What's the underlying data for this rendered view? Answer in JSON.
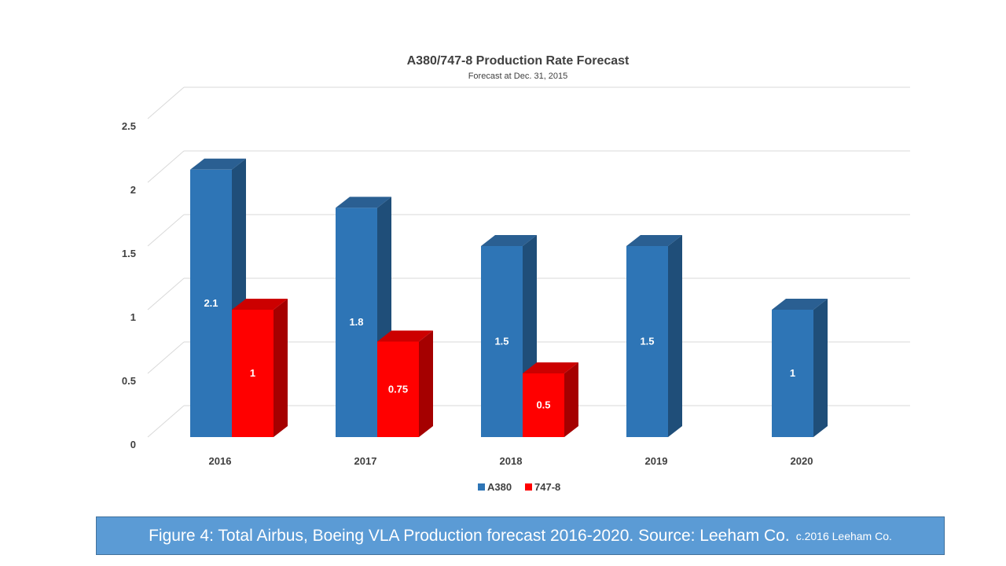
{
  "chart_data": {
    "type": "bar",
    "title": "A380/747-8 Production Rate Forecast",
    "subtitle": "Forecast at Dec. 31, 2015",
    "categories": [
      "2016",
      "2017",
      "2018",
      "2019",
      "2020"
    ],
    "series": [
      {
        "name": "A380",
        "values": [
          2.1,
          1.8,
          1.5,
          1.5,
          1
        ],
        "labels": [
          "2.1",
          "1.8",
          "1.5",
          "1.5",
          "1"
        ],
        "color": "#2e75b6"
      },
      {
        "name": "747-8",
        "values": [
          1,
          0.75,
          0.5,
          null,
          null
        ],
        "labels": [
          "1",
          "0.75",
          "0.5",
          "",
          ""
        ],
        "color": "#ff0000"
      }
    ],
    "y_ticks": [
      "0",
      "0.5",
      "1",
      "1.5",
      "2",
      "2.5"
    ],
    "ylim": [
      0,
      2.5
    ],
    "grid": true,
    "legend": "bottom",
    "xlabel": "",
    "ylabel": ""
  },
  "caption": {
    "main": "Figure 4: Total Airbus, Boeing VLA Production forecast 2016-2020. Source: Leeham Co.",
    "small": "c.2016 Leeham Co."
  },
  "colors": {
    "a380_front": "#2e75b6",
    "a380_side": "#1f4e79",
    "a380_top": "#2a5f92",
    "b747_front": "#ff0000",
    "b747_side": "#a50000",
    "b747_top": "#cc0000",
    "grid": "#d9d9d9",
    "caption_bg": "#5b9bd5"
  }
}
